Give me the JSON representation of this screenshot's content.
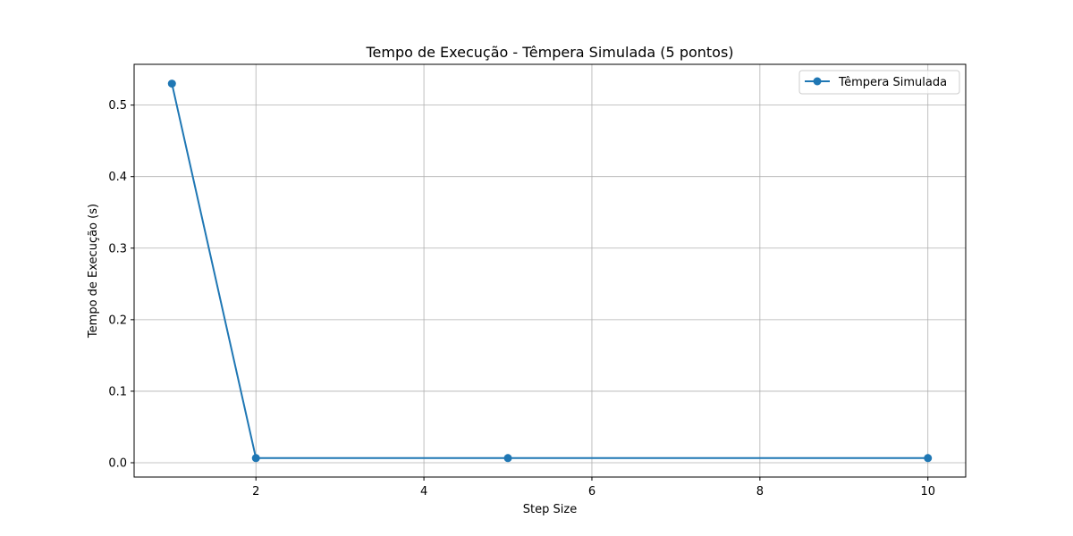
{
  "chart_data": {
    "type": "line",
    "title": "Tempo de Execução - Têmpera Simulada (5 pontos)",
    "xlabel": "Step Size",
    "ylabel": "Tempo de Execução (s)",
    "xlim": [
      0.55,
      10.45
    ],
    "ylim": [
      -0.02,
      0.557
    ],
    "xticks": [
      2,
      4,
      6,
      8,
      10
    ],
    "xtick_labels": [
      "2",
      "4",
      "6",
      "8",
      "10"
    ],
    "yticks": [
      0.0,
      0.1,
      0.2,
      0.3,
      0.4,
      0.5
    ],
    "ytick_labels": [
      "0.0",
      "0.1",
      "0.2",
      "0.3",
      "0.4",
      "0.5"
    ],
    "grid": true,
    "legend_position": "top-right",
    "series": [
      {
        "name": "Têmpera Simulada",
        "color": "#1f77b4",
        "marker": "circle",
        "x": [
          1,
          2,
          5,
          10
        ],
        "y": [
          0.53,
          0.0065,
          0.0065,
          0.0065
        ]
      }
    ]
  }
}
